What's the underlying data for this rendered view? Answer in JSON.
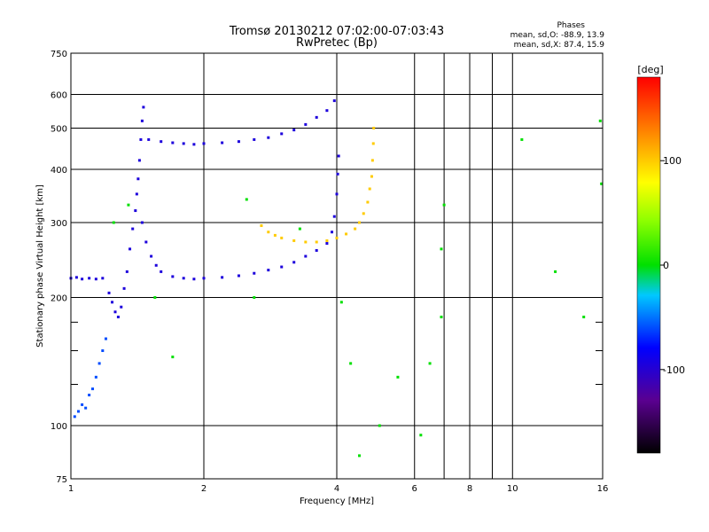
{
  "header": {
    "title_line1": "Tromsø 20130212 07:02:00-07:03:43",
    "title_line2": "RwPretec (Bp)",
    "stats_heading": "Phases",
    "stats_o": "mean, sd,O: -88.9, 13.9",
    "stats_x": "mean, sd,X:  87.4, 15.9"
  },
  "chart_data": {
    "type": "scatter",
    "xlabel": "Frequency [MHz]",
    "ylabel": "Stationary phase Virtual Height [km]",
    "x_scale": "log",
    "y_scale": "log",
    "xlim": [
      1,
      16
    ],
    "ylim": [
      75,
      750
    ],
    "x_ticks": [
      1,
      2,
      4,
      6,
      8,
      10,
      16
    ],
    "x_tick_labels": [
      "1",
      "2",
      "4",
      "6",
      "8",
      "10",
      "16"
    ],
    "x_major_grid": [
      1,
      2,
      4,
      6,
      7,
      8,
      9,
      10,
      16
    ],
    "y_ticks": [
      75,
      100,
      200,
      300,
      400,
      500,
      600,
      750
    ],
    "y_tick_labels": [
      "75",
      "100",
      "200",
      "300",
      "400",
      "500",
      "600",
      "750"
    ],
    "y_minor_ticks": [
      125,
      150,
      175
    ],
    "grid": true,
    "colorbar": {
      "label": "[deg]",
      "range": [
        -180,
        180
      ],
      "ticks": [
        100,
        0,
        -100
      ],
      "tick_labels": [
        "100",
        "0",
        "-100"
      ]
    },
    "traces": [
      {
        "name": "O-mode low E/F1 cusp",
        "phase": -95,
        "points": [
          [
            1.0,
            222
          ],
          [
            1.03,
            223
          ],
          [
            1.06,
            221
          ],
          [
            1.1,
            222
          ],
          [
            1.14,
            221
          ],
          [
            1.18,
            222
          ],
          [
            1.22,
            205
          ],
          [
            1.24,
            195
          ],
          [
            1.26,
            185
          ],
          [
            1.28,
            180
          ],
          [
            1.3,
            190
          ],
          [
            1.32,
            210
          ],
          [
            1.34,
            230
          ],
          [
            1.36,
            260
          ],
          [
            1.38,
            290
          ],
          [
            1.4,
            320
          ],
          [
            1.41,
            350
          ],
          [
            1.42,
            380
          ],
          [
            1.43,
            420
          ],
          [
            1.44,
            470
          ],
          [
            1.45,
            520
          ],
          [
            1.46,
            560
          ]
        ]
      },
      {
        "name": "O-mode F2 trace",
        "phase": -95,
        "points": [
          [
            1.45,
            300
          ],
          [
            1.48,
            270
          ],
          [
            1.52,
            250
          ],
          [
            1.56,
            238
          ],
          [
            1.6,
            230
          ],
          [
            1.7,
            224
          ],
          [
            1.8,
            222
          ],
          [
            1.9,
            221
          ],
          [
            2.0,
            222
          ],
          [
            2.2,
            223
          ],
          [
            2.4,
            225
          ],
          [
            2.6,
            228
          ],
          [
            2.8,
            232
          ],
          [
            3.0,
            236
          ],
          [
            3.2,
            242
          ],
          [
            3.4,
            250
          ],
          [
            3.6,
            258
          ],
          [
            3.8,
            268
          ],
          [
            3.9,
            285
          ],
          [
            3.95,
            310
          ],
          [
            4.0,
            350
          ],
          [
            4.02,
            390
          ],
          [
            4.04,
            430
          ]
        ]
      },
      {
        "name": "O-mode multiple echo",
        "phase": -95,
        "points": [
          [
            1.5,
            470
          ],
          [
            1.6,
            465
          ],
          [
            1.7,
            462
          ],
          [
            1.8,
            460
          ],
          [
            1.9,
            458
          ],
          [
            2.0,
            460
          ],
          [
            2.2,
            462
          ],
          [
            2.4,
            465
          ],
          [
            2.6,
            470
          ],
          [
            2.8,
            475
          ],
          [
            3.0,
            485
          ],
          [
            3.2,
            495
          ],
          [
            3.4,
            510
          ],
          [
            3.6,
            530
          ],
          [
            3.8,
            550
          ],
          [
            3.95,
            580
          ]
        ]
      },
      {
        "name": "X-mode F2 trace",
        "phase": 100,
        "points": [
          [
            2.7,
            295
          ],
          [
            2.8,
            285
          ],
          [
            2.9,
            280
          ],
          [
            3.0,
            276
          ],
          [
            3.2,
            272
          ],
          [
            3.4,
            270
          ],
          [
            3.6,
            270
          ],
          [
            3.8,
            272
          ],
          [
            4.0,
            276
          ],
          [
            4.2,
            282
          ],
          [
            4.4,
            290
          ],
          [
            4.5,
            300
          ],
          [
            4.6,
            315
          ],
          [
            4.7,
            335
          ],
          [
            4.75,
            360
          ],
          [
            4.8,
            385
          ],
          [
            4.82,
            420
          ],
          [
            4.84,
            460
          ],
          [
            4.85,
            500
          ]
        ]
      },
      {
        "name": "scattered echoes",
        "phase": 0,
        "points": [
          [
            1.25,
            300
          ],
          [
            1.35,
            330
          ],
          [
            1.55,
            200
          ],
          [
            1.7,
            145
          ],
          [
            2.5,
            340
          ],
          [
            2.6,
            200
          ],
          [
            3.3,
            290
          ],
          [
            4.1,
            195
          ],
          [
            4.3,
            140
          ],
          [
            4.5,
            85
          ],
          [
            5.0,
            100
          ],
          [
            5.5,
            130
          ],
          [
            6.2,
            95
          ],
          [
            6.5,
            140
          ],
          [
            6.9,
            180
          ],
          [
            6.9,
            260
          ],
          [
            7.0,
            330
          ],
          [
            10.5,
            470
          ],
          [
            12.5,
            230
          ],
          [
            14.5,
            180
          ],
          [
            15.8,
            520
          ],
          [
            15.9,
            370
          ]
        ]
      },
      {
        "name": "low frequency cluster",
        "phase": -60,
        "points": [
          [
            1.02,
            105
          ],
          [
            1.04,
            108
          ],
          [
            1.06,
            112
          ],
          [
            1.08,
            110
          ],
          [
            1.1,
            118
          ],
          [
            1.12,
            122
          ],
          [
            1.14,
            130
          ],
          [
            1.16,
            140
          ],
          [
            1.18,
            150
          ],
          [
            1.2,
            160
          ]
        ]
      }
    ]
  }
}
